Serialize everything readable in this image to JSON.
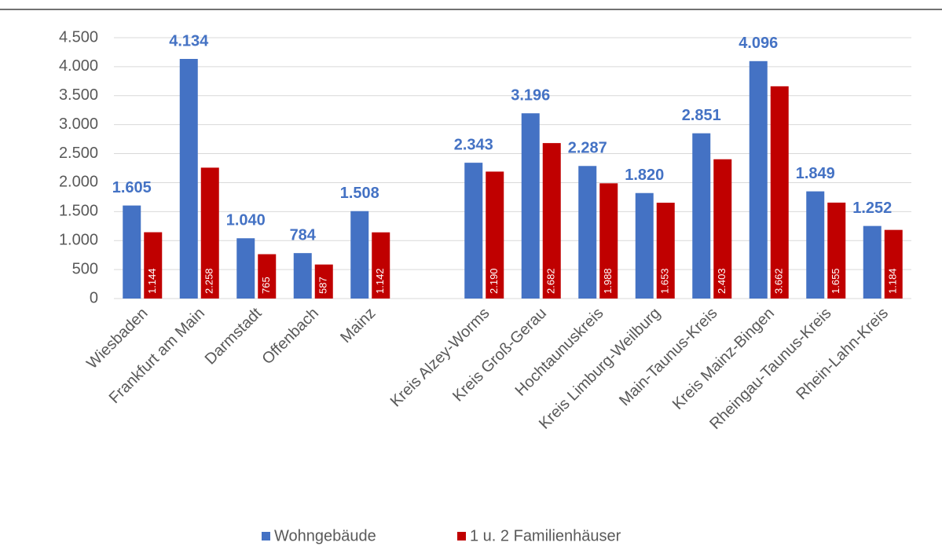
{
  "chart_data": {
    "type": "bar",
    "categories": [
      "Wiesbaden",
      "Frankfurt am Main",
      "Darmstadt",
      "Offenbach",
      "Mainz",
      null,
      "Kreis Alzey-Worms",
      "Kreis Groß-Gerau",
      "Hochtaunuskreis",
      "Kreis Limburg-Weilburg",
      "Main-Taunus-Kreis",
      "Kreis Mainz-Bingen",
      "Rheingau-Taunus-Kreis",
      "Rhein-Lahn-Kreis"
    ],
    "series": [
      {
        "name": "Wohngebäude",
        "color": "#4472c4",
        "values": [
          1605,
          4134,
          1040,
          784,
          1508,
          null,
          2343,
          3196,
          2287,
          1820,
          2851,
          4096,
          1849,
          1252
        ],
        "value_labels": [
          "1.605",
          "4.134",
          "1.040",
          "784",
          "1.508",
          null,
          "2.343",
          "3.196",
          "2.287",
          "1.820",
          "2.851",
          "4.096",
          "1.849",
          "1.252"
        ]
      },
      {
        "name": "1 u. 2 Familienhäuser",
        "color": "#c00000",
        "values": [
          1144,
          2258,
          765,
          587,
          1142,
          null,
          2190,
          2682,
          1988,
          1653,
          2403,
          3662,
          1655,
          1184
        ],
        "value_labels": [
          "1.144",
          "2.258",
          "765",
          "587",
          "1.142",
          null,
          "2.190",
          "2.682",
          "1.988",
          "1.653",
          "2.403",
          "3.662",
          "1.655",
          "1.184"
        ]
      }
    ],
    "ylim": [
      0,
      4500
    ],
    "yticks": [
      0,
      500,
      {
        "value": 1000,
        "label": "1.000"
      },
      {
        "value": 1500,
        "label": "1.500"
      },
      {
        "value": 2000,
        "label": "2.000"
      },
      {
        "value": 2500,
        "label": "2.500"
      },
      {
        "value": 3000,
        "label": "3.000"
      },
      {
        "value": 3500,
        "label": "3.500"
      },
      {
        "value": 4000,
        "label": "4.000"
      },
      {
        "value": 4500,
        "label": "4.500"
      }
    ],
    "grid": true,
    "legend": "bottom"
  }
}
